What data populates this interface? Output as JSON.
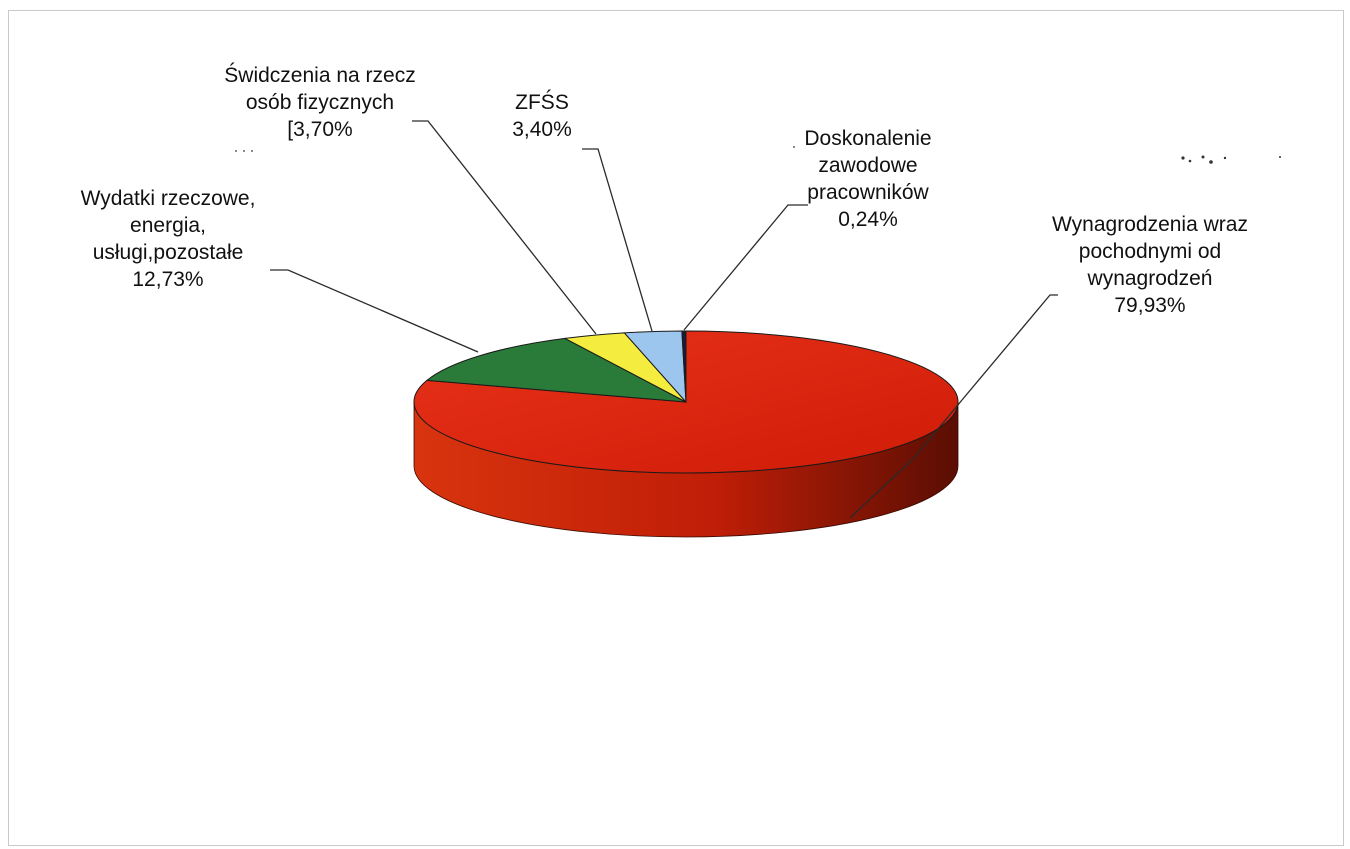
{
  "chart_data": {
    "type": "pie",
    "style": "3d",
    "categories": [
      "Wynagrodzenia wraz pochodnymi od wynagrodzeń",
      "Wydatki rzeczowe, energia, usługi,pozostałe",
      "Świdczenia na rzecz osób fizycznych",
      "ZFŚS",
      "Doskonalenie zawodowe pracowników"
    ],
    "values": [
      79.93,
      12.73,
      3.7,
      3.4,
      0.24
    ],
    "colors": [
      "#e0280f",
      "#2a7a3a",
      "#f4ec3f",
      "#9dc6ee",
      "#1b1b3a"
    ],
    "labels": [
      {
        "lines": [
          "Wynagrodzenia wraz",
          "pochodnymi od",
          "wynagrodzeń",
          "79,93%"
        ]
      },
      {
        "lines": [
          "Wydatki rzeczowe,",
          "energia,",
          "usługi,pozostałe",
          "12,73%"
        ]
      },
      {
        "lines": [
          "Świdczenia na rzecz",
          "osób fizycznych",
          "[3,70%"
        ]
      },
      {
        "lines": [
          "ZFŚS",
          "3,40%"
        ]
      },
      {
        "lines": [
          "Doskonalenie",
          "zawodowe",
          "pracowników",
          "0,24%"
        ]
      }
    ]
  }
}
